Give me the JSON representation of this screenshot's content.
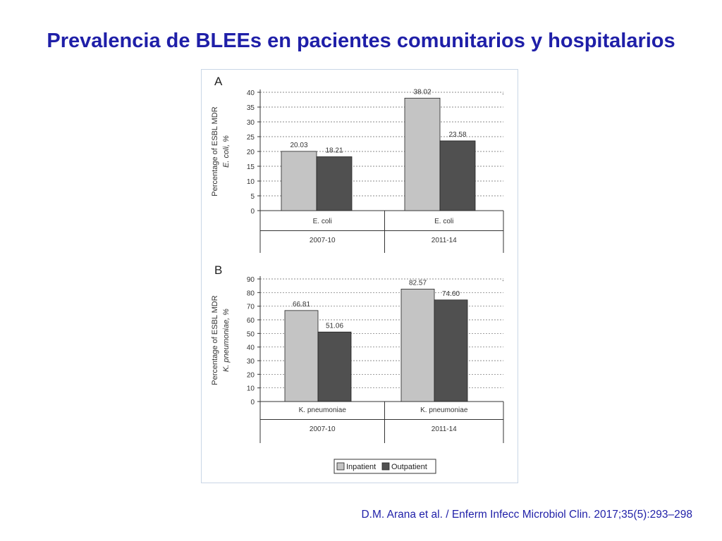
{
  "slide": {
    "title": "Prevalencia de BLEEs en pacientes comunitarios y hospitalarios",
    "citation": "D.M. Arana et al. / Enferm Infecc Microbiol Clin. 2017;35(5):293–298"
  },
  "colors": {
    "inpatient": "#c4c4c4",
    "outpatient": "#505050",
    "title": "#1f1fa8"
  },
  "chart_data": [
    {
      "type": "bar",
      "panel_label": "A",
      "ylabel": "Percentage of ESBL MDR",
      "ylabel2": "E. coli, %",
      "ylim": [
        0,
        40
      ],
      "yticks": [
        0,
        5,
        10,
        15,
        20,
        25,
        30,
        35,
        40
      ],
      "grid": true,
      "groups": [
        {
          "category": "E. coli",
          "period": "2007-10",
          "values": [
            20.03,
            18.21
          ],
          "labels": [
            "20.03",
            "18.21"
          ]
        },
        {
          "category": "E. coli",
          "period": "2011-14",
          "values": [
            38.02,
            23.58
          ],
          "labels": [
            "38.02",
            "23.58"
          ]
        }
      ],
      "series": [
        {
          "name": "Inpatient"
        },
        {
          "name": "Outpatient"
        }
      ]
    },
    {
      "type": "bar",
      "panel_label": "B",
      "ylabel": "Percentage of ESBL MDR",
      "ylabel2": "K. pneumoniae, %",
      "ylim": [
        0,
        90
      ],
      "yticks": [
        0,
        10,
        20,
        30,
        40,
        50,
        60,
        70,
        80,
        90
      ],
      "grid": true,
      "groups": [
        {
          "category": "K. pneumoniae",
          "period": "2007-10",
          "values": [
            66.81,
            51.06
          ],
          "labels": [
            "66.81",
            "51.06"
          ]
        },
        {
          "category": "K. pneumoniae",
          "period": "2011-14",
          "values": [
            82.57,
            74.6
          ],
          "labels": [
            "82.57",
            "74.60"
          ]
        }
      ],
      "series": [
        {
          "name": "Inpatient"
        },
        {
          "name": "Outpatient"
        }
      ]
    }
  ],
  "legend": {
    "items": [
      "Inpatient",
      "Outpatient"
    ],
    "position": "bottom"
  }
}
